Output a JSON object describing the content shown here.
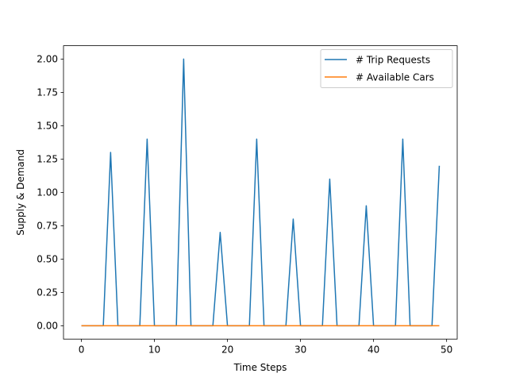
{
  "chart_data": {
    "type": "line",
    "title": "",
    "xlabel": "Time Steps",
    "ylabel": "Supply & Demand",
    "xlim": [
      -2.45,
      51.45
    ],
    "ylim": [
      -0.1,
      2.1
    ],
    "xticks": [
      0,
      10,
      20,
      30,
      40,
      50
    ],
    "xtick_labels": [
      "0",
      "10",
      "20",
      "30",
      "40",
      "50"
    ],
    "yticks": [
      0,
      0.25,
      0.5,
      0.75,
      1.0,
      1.25,
      1.5,
      1.75,
      2.0
    ],
    "ytick_labels": [
      "0.00",
      "0.25",
      "0.50",
      "0.75",
      "1.00",
      "1.25",
      "1.50",
      "1.75",
      "2.00"
    ],
    "grid": false,
    "legend_position": "top-right",
    "x": [
      0,
      1,
      2,
      3,
      4,
      5,
      6,
      7,
      8,
      9,
      10,
      11,
      12,
      13,
      14,
      15,
      16,
      17,
      18,
      19,
      20,
      21,
      22,
      23,
      24,
      25,
      26,
      27,
      28,
      29,
      30,
      31,
      32,
      33,
      34,
      35,
      36,
      37,
      38,
      39,
      40,
      41,
      42,
      43,
      44,
      45,
      46,
      47,
      48,
      49
    ],
    "series": [
      {
        "name": "# Trip Requests",
        "color": "#1f77b4",
        "values": [
          0,
          0,
          0,
          0,
          1.3,
          0,
          0,
          0,
          0,
          1.4,
          0,
          0,
          0,
          0,
          2.0,
          0,
          0,
          0,
          0,
          0.7,
          0,
          0,
          0,
          0,
          1.4,
          0,
          0,
          0,
          0,
          0.8,
          0,
          0,
          0,
          0,
          1.1,
          0,
          0,
          0,
          0,
          0.9,
          0,
          0,
          0,
          0,
          1.4,
          0,
          0,
          0,
          0,
          1.2
        ]
      },
      {
        "name": "# Available Cars",
        "color": "#ff7f0e",
        "values": [
          0,
          0,
          0,
          0,
          0,
          0,
          0,
          0,
          0,
          0,
          0,
          0,
          0,
          0,
          0,
          0,
          0,
          0,
          0,
          0,
          0,
          0,
          0,
          0,
          0,
          0,
          0,
          0,
          0,
          0,
          0,
          0,
          0,
          0,
          0,
          0,
          0,
          0,
          0,
          0,
          0,
          0,
          0,
          0,
          0,
          0,
          0,
          0,
          0,
          0
        ]
      }
    ]
  }
}
